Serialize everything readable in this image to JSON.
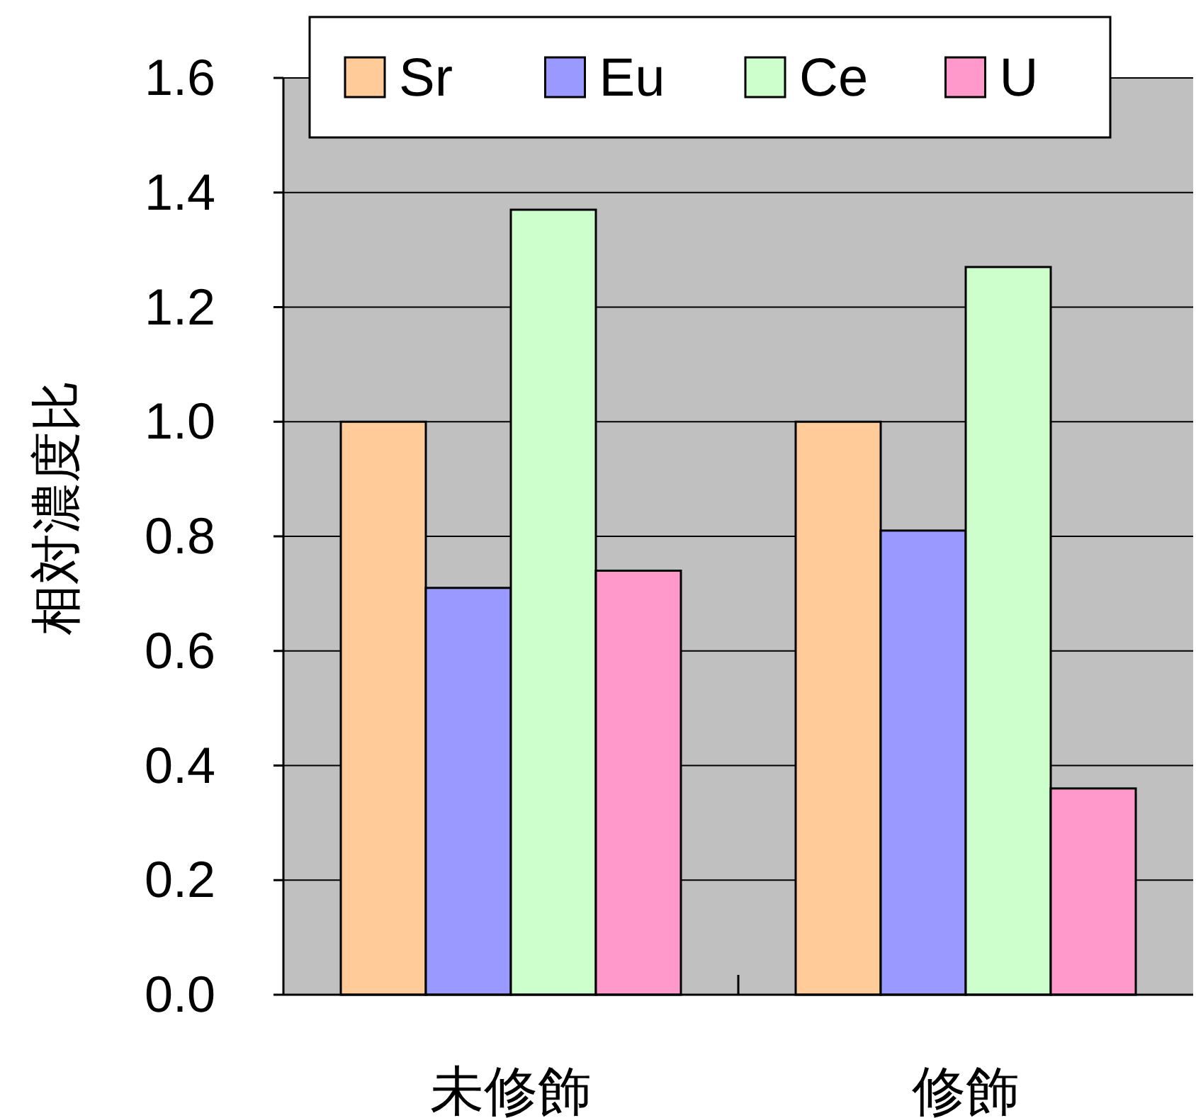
{
  "chart_data": {
    "type": "bar",
    "categories": [
      "未修飾",
      "修飾"
    ],
    "series": [
      {
        "name": "Sr",
        "color": "#ffcc99",
        "values": [
          1.0,
          1.0
        ]
      },
      {
        "name": "Eu",
        "color": "#9999ff",
        "values": [
          0.71,
          0.81
        ]
      },
      {
        "name": "Ce",
        "color": "#ccffcc",
        "values": [
          1.37,
          1.27
        ]
      },
      {
        "name": "U",
        "color": "#ff99cc",
        "values": [
          0.74,
          0.36
        ]
      }
    ],
    "ylabel": "相対濃度比",
    "ylim": [
      0,
      1.6
    ],
    "yticks": [
      {
        "value": 0,
        "label": "0.0"
      },
      {
        "value": 0.2,
        "label": "0.2"
      },
      {
        "value": 0.4,
        "label": "0.4"
      },
      {
        "value": 0.6,
        "label": "0.6"
      },
      {
        "value": 0.8,
        "label": "0.8"
      },
      {
        "value": 1.0,
        "label": "1.0"
      },
      {
        "value": 1.2,
        "label": "1.2"
      },
      {
        "value": 1.4,
        "label": "1.4"
      },
      {
        "value": 1.6,
        "label": "1.6"
      }
    ],
    "grid": "y",
    "legend": "top"
  }
}
